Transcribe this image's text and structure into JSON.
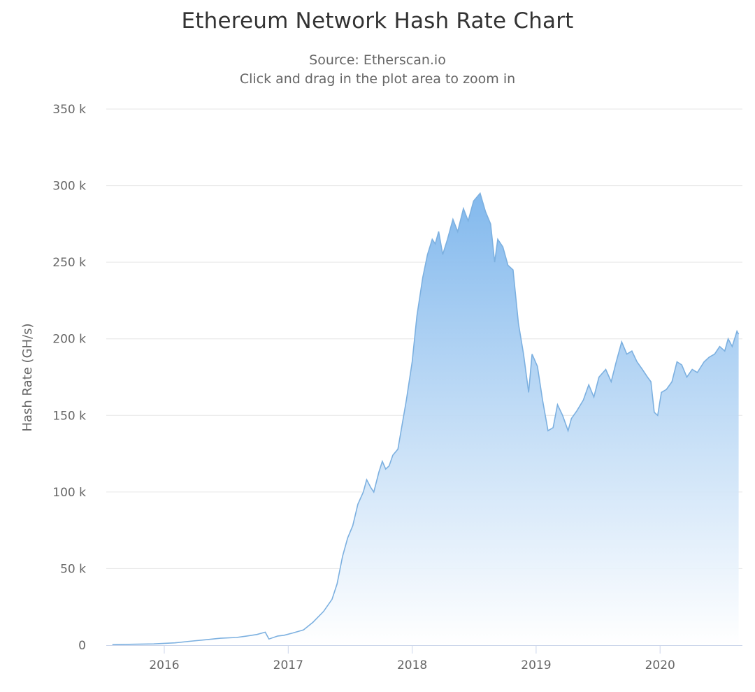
{
  "header": {
    "title": "Ethereum Network Hash Rate Chart",
    "subtitle_source": "Source: Etherscan.io",
    "subtitle_hint": "Click and drag in the plot area to zoom in"
  },
  "colors": {
    "line": "#7cb0e0",
    "fill_top": "#7cb5ec",
    "fill_bottom": "#ffffff",
    "grid": "#e6e6e6",
    "axis_text": "#666666",
    "title": "#333333"
  },
  "chart_data": {
    "type": "area",
    "title": "Ethereum Network Hash Rate Chart",
    "subtitle": "Source: Etherscan.io | Click and drag in the plot area to zoom in",
    "xlabel": "",
    "ylabel": "Hash Rate (GH/s)",
    "ylim": [
      0,
      350000
    ],
    "yticks": [
      0,
      50000,
      100000,
      150000,
      200000,
      250000,
      300000,
      350000
    ],
    "ytick_labels": [
      "0",
      "50 k",
      "100 k",
      "150 k",
      "200 k",
      "250 k",
      "300 k",
      "350 k"
    ],
    "xticks": [
      "2016",
      "2017",
      "2018",
      "2019",
      "2020"
    ],
    "grid": true,
    "legend": null,
    "series": [
      {
        "name": "Hash Rate (GH/s)",
        "points": [
          [
            "2015-08-01",
            0.3
          ],
          [
            "2015-10-01",
            0.6
          ],
          [
            "2015-12-01",
            0.8
          ],
          [
            "2016-02-01",
            1.5
          ],
          [
            "2016-03-15",
            2.5
          ],
          [
            "2016-05-01",
            3.5
          ],
          [
            "2016-06-15",
            4.5
          ],
          [
            "2016-08-01",
            5.0
          ],
          [
            "2016-09-01",
            6.0
          ],
          [
            "2016-10-01",
            7.0
          ],
          [
            "2016-10-25",
            8.5
          ],
          [
            "2016-11-05",
            4.0
          ],
          [
            "2016-12-01",
            6.0
          ],
          [
            "2016-12-20",
            6.5
          ],
          [
            "2017-01-15",
            8.0
          ],
          [
            "2017-02-15",
            10.0
          ],
          [
            "2017-03-15",
            15.0
          ],
          [
            "2017-04-15",
            22.0
          ],
          [
            "2017-05-10",
            30.0
          ],
          [
            "2017-05-25",
            40.0
          ],
          [
            "2017-06-10",
            58.0
          ],
          [
            "2017-06-25",
            70.0
          ],
          [
            "2017-07-10",
            78.0
          ],
          [
            "2017-07-25",
            92.0
          ],
          [
            "2017-08-10",
            100.0
          ],
          [
            "2017-08-20",
            108.0
          ],
          [
            "2017-09-01",
            103.0
          ],
          [
            "2017-09-10",
            100.0
          ],
          [
            "2017-09-25",
            113.0
          ],
          [
            "2017-10-05",
            120.0
          ],
          [
            "2017-10-15",
            115.0
          ],
          [
            "2017-10-25",
            117.0
          ],
          [
            "2017-11-05",
            124.0
          ],
          [
            "2017-11-20",
            128.0
          ],
          [
            "2017-12-01",
            142.0
          ],
          [
            "2017-12-15",
            160.0
          ],
          [
            "2018-01-01",
            185.0
          ],
          [
            "2018-01-15",
            215.0
          ],
          [
            "2018-02-01",
            240.0
          ],
          [
            "2018-02-15",
            255.0
          ],
          [
            "2018-03-01",
            265.0
          ],
          [
            "2018-03-10",
            262.0
          ],
          [
            "2018-03-20",
            270.0
          ],
          [
            "2018-04-01",
            255.0
          ],
          [
            "2018-04-15",
            265.0
          ],
          [
            "2018-05-01",
            278.0
          ],
          [
            "2018-05-15",
            270.0
          ],
          [
            "2018-06-01",
            285.0
          ],
          [
            "2018-06-15",
            277.0
          ],
          [
            "2018-07-01",
            290.0
          ],
          [
            "2018-07-20",
            295.0
          ],
          [
            "2018-08-05",
            283.0
          ],
          [
            "2018-08-20",
            275.0
          ],
          [
            "2018-09-01",
            250.0
          ],
          [
            "2018-09-10",
            265.0
          ],
          [
            "2018-09-25",
            260.0
          ],
          [
            "2018-10-10",
            248.0
          ],
          [
            "2018-10-25",
            245.0
          ],
          [
            "2018-11-10",
            210.0
          ],
          [
            "2018-11-25",
            190.0
          ],
          [
            "2018-12-10",
            165.0
          ],
          [
            "2018-12-20",
            190.0
          ],
          [
            "2019-01-05",
            182.0
          ],
          [
            "2019-01-20",
            160.0
          ],
          [
            "2019-02-05",
            140.0
          ],
          [
            "2019-02-20",
            142.0
          ],
          [
            "2019-03-05",
            157.0
          ],
          [
            "2019-03-20",
            150.0
          ],
          [
            "2019-04-05",
            140.0
          ],
          [
            "2019-04-15",
            148.0
          ],
          [
            "2019-05-01",
            153.0
          ],
          [
            "2019-05-20",
            160.0
          ],
          [
            "2019-06-05",
            170.0
          ],
          [
            "2019-06-20",
            162.0
          ],
          [
            "2019-07-05",
            175.0
          ],
          [
            "2019-07-25",
            180.0
          ],
          [
            "2019-08-10",
            172.0
          ],
          [
            "2019-08-25",
            185.0
          ],
          [
            "2019-09-10",
            198.0
          ],
          [
            "2019-09-25",
            190.0
          ],
          [
            "2019-10-10",
            192.0
          ],
          [
            "2019-10-25",
            185.0
          ],
          [
            "2019-11-10",
            180.0
          ],
          [
            "2019-11-25",
            175.0
          ],
          [
            "2019-12-05",
            172.0
          ],
          [
            "2019-12-15",
            152.0
          ],
          [
            "2019-12-25",
            150.0
          ],
          [
            "2020-01-05",
            165.0
          ],
          [
            "2020-01-20",
            167.0
          ],
          [
            "2020-02-05",
            172.0
          ],
          [
            "2020-02-20",
            185.0
          ],
          [
            "2020-03-05",
            183.0
          ],
          [
            "2020-03-20",
            175.0
          ],
          [
            "2020-04-05",
            180.0
          ],
          [
            "2020-04-20",
            178.0
          ],
          [
            "2020-05-10",
            185.0
          ],
          [
            "2020-05-25",
            188.0
          ],
          [
            "2020-06-10",
            190.0
          ],
          [
            "2020-06-25",
            195.0
          ],
          [
            "2020-07-10",
            192.0
          ],
          [
            "2020-07-20",
            200.0
          ],
          [
            "2020-08-01",
            195.0
          ],
          [
            "2020-08-15",
            205.0
          ],
          [
            "2020-08-20",
            203.0
          ]
        ],
        "units_note": "values in thousands (k) of GH/s"
      }
    ]
  }
}
